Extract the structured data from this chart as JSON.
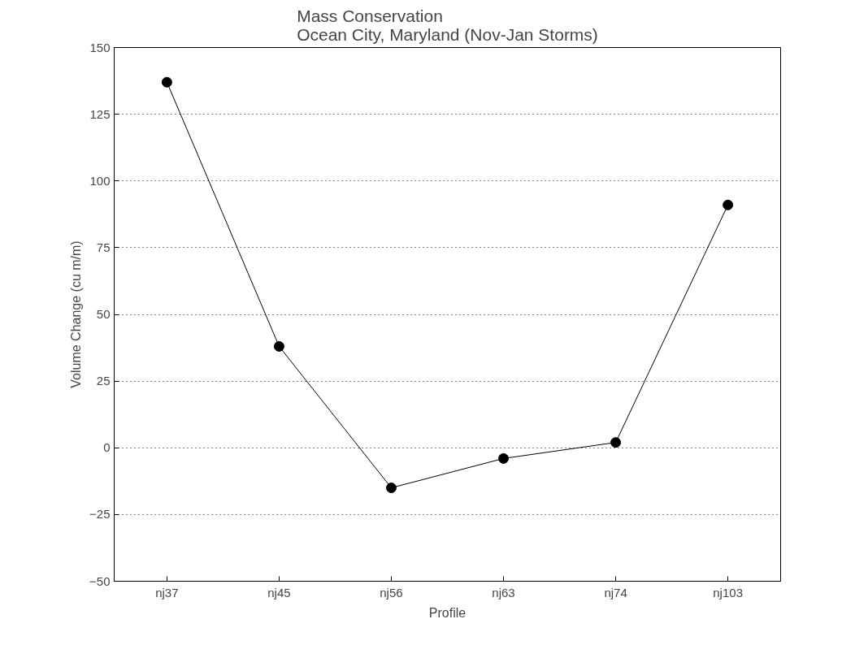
{
  "chart_data": {
    "type": "line",
    "title": "Mass Conservation\nOcean City, Maryland (Nov-Jan Storms)",
    "xlabel": "Profile",
    "ylabel": "Volume Change (cu m/m)",
    "categories": [
      "nj37",
      "nj45",
      "nj56",
      "nj63",
      "nj74",
      "nj103"
    ],
    "series": [
      {
        "color": "#000000",
        "values": [
          137,
          38,
          -15,
          -4,
          2,
          91
        ]
      }
    ],
    "ylim": [
      -50,
      150
    ],
    "yticks": [
      -50,
      -25,
      0,
      25,
      50,
      75,
      100,
      125,
      150
    ],
    "grid": "y",
    "marker": "circle",
    "line_style": "solid"
  }
}
